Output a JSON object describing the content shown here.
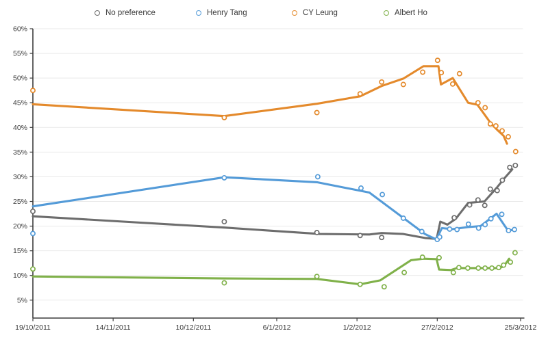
{
  "chart_data": {
    "type": "line",
    "title": "",
    "description": "Opinion polling lines with scatter points for 2012 Hong Kong Chief Executive candidates",
    "legend_position": "top",
    "grid": "horizontal",
    "x_axis": {
      "type": "date",
      "tick_labels": [
        "19/10/2011",
        "14/11/2011",
        "10/12/2011",
        "6/1/2012",
        "1/2/2012",
        "27/2/2012",
        "25/3/2012"
      ],
      "tick_positions_days": [
        0,
        26,
        52,
        79,
        105,
        131,
        158
      ],
      "range_days": [
        0,
        158
      ]
    },
    "y_axis": {
      "unit": "%",
      "min": 5,
      "max": 60,
      "step": 5,
      "tick_labels": [
        "60%",
        "55%",
        "50%",
        "45%",
        "40%",
        "35%",
        "30%",
        "25%",
        "20%",
        "15%",
        "10%",
        "5%"
      ]
    },
    "series": [
      {
        "name": "No preference",
        "color": "#6d6d6d",
        "trend_line": [
          [
            0,
            22.0
          ],
          [
            62,
            19.7
          ],
          [
            93,
            18.4
          ],
          [
            109,
            18.3
          ],
          [
            113,
            18.6
          ],
          [
            120,
            18.4
          ],
          [
            127,
            17.6
          ],
          [
            130.8,
            17.4
          ],
          [
            132,
            20.9
          ],
          [
            134.3,
            20.3
          ],
          [
            137,
            21.5
          ],
          [
            141,
            24.7
          ],
          [
            146.3,
            25.0
          ],
          [
            150.3,
            27.8
          ],
          [
            152.9,
            29.8
          ],
          [
            155.3,
            31.5
          ]
        ],
        "points": [
          [
            0,
            23.0
          ],
          [
            62,
            20.9
          ],
          [
            92,
            18.7
          ],
          [
            106,
            18.1
          ],
          [
            113,
            17.7
          ],
          [
            136.5,
            21.7
          ],
          [
            141.5,
            24.3
          ],
          [
            144.2,
            25.3
          ],
          [
            146.4,
            24.2
          ],
          [
            148.2,
            27.5
          ],
          [
            150.4,
            27.2
          ],
          [
            152.1,
            29.3
          ],
          [
            154.5,
            31.9
          ],
          [
            156.3,
            32.3
          ]
        ]
      },
      {
        "name": "Henry Tang",
        "color": "#549bd8",
        "trend_line": [
          [
            0,
            24.0
          ],
          [
            62,
            29.9
          ],
          [
            92,
            28.9
          ],
          [
            109,
            26.8
          ],
          [
            127,
            18.4
          ],
          [
            130.7,
            17.3
          ],
          [
            132.5,
            19.6
          ],
          [
            136,
            19.4
          ],
          [
            141,
            19.8
          ],
          [
            145,
            20.0
          ],
          [
            150.2,
            22.5
          ],
          [
            153.8,
            19.2
          ],
          [
            155.8,
            19.2
          ]
        ],
        "points": [
          [
            0,
            18.5
          ],
          [
            62,
            29.8
          ],
          [
            92.3,
            30.0
          ],
          [
            106.3,
            27.7
          ],
          [
            113.2,
            26.4
          ],
          [
            120,
            21.6
          ],
          [
            126,
            18.9
          ],
          [
            131,
            17.3
          ],
          [
            131.8,
            17.8
          ],
          [
            135,
            19.4
          ],
          [
            137.4,
            19.3
          ],
          [
            141.1,
            20.4
          ],
          [
            144.4,
            19.6
          ],
          [
            146.5,
            20.3
          ],
          [
            148.4,
            21.5
          ],
          [
            151.9,
            22.4
          ],
          [
            154.1,
            19.1
          ],
          [
            156,
            19.3
          ]
        ]
      },
      {
        "name": "CY Leung",
        "color": "#e48a2c",
        "trend_line": [
          [
            0,
            44.7
          ],
          [
            62,
            42.3
          ],
          [
            92,
            44.8
          ],
          [
            106,
            46.3
          ],
          [
            113,
            48.4
          ],
          [
            120,
            49.9
          ],
          [
            126.5,
            52.4
          ],
          [
            131.4,
            52.4
          ],
          [
            132.2,
            48.7
          ],
          [
            136,
            50.0
          ],
          [
            141,
            45.0
          ],
          [
            144,
            44.6
          ],
          [
            146,
            42.9
          ],
          [
            148.4,
            40.8
          ],
          [
            150.6,
            39.4
          ],
          [
            152.5,
            38.3
          ],
          [
            153.6,
            36.7
          ]
        ],
        "points": [
          [
            0,
            47.5
          ],
          [
            62,
            42.0
          ],
          [
            92,
            43.0
          ],
          [
            106,
            46.8
          ],
          [
            113,
            49.2
          ],
          [
            120,
            48.7
          ],
          [
            126.3,
            51.2
          ],
          [
            131.1,
            53.6
          ],
          [
            132.3,
            51.1
          ],
          [
            136,
            48.8
          ],
          [
            138.2,
            50.9
          ],
          [
            144.2,
            45.0
          ],
          [
            146.5,
            44.0
          ],
          [
            148.2,
            40.7
          ],
          [
            150,
            40.3
          ],
          [
            152,
            39.3
          ],
          [
            154,
            38.1
          ],
          [
            156.4,
            35.1
          ]
        ]
      },
      {
        "name": "Albert Ho",
        "color": "#80b14a",
        "trend_line": [
          [
            0,
            9.8
          ],
          [
            62,
            9.4
          ],
          [
            92,
            9.3
          ],
          [
            106,
            8.2
          ],
          [
            112.5,
            9.0
          ],
          [
            122.5,
            13.1
          ],
          [
            126.5,
            13.4
          ],
          [
            130.8,
            13.3
          ],
          [
            131.6,
            11.2
          ],
          [
            135.4,
            11.1
          ],
          [
            137.4,
            11.5
          ],
          [
            150.9,
            11.5
          ],
          [
            152.5,
            11.8
          ],
          [
            154.3,
            13.4
          ]
        ],
        "points": [
          [
            0,
            11.3
          ],
          [
            62,
            8.5
          ],
          [
            92,
            9.8
          ],
          [
            106,
            8.2
          ],
          [
            113.8,
            7.7
          ],
          [
            120.3,
            10.6
          ],
          [
            126.2,
            13.7
          ],
          [
            131.6,
            13.6
          ],
          [
            136.2,
            10.6
          ],
          [
            138,
            11.6
          ],
          [
            140.9,
            11.5
          ],
          [
            144.3,
            11.5
          ],
          [
            146.5,
            11.5
          ],
          [
            148.7,
            11.5
          ],
          [
            150.9,
            11.6
          ],
          [
            152.5,
            12.1
          ],
          [
            154.7,
            12.7
          ],
          [
            156.2,
            14.6
          ]
        ]
      }
    ],
    "style": {
      "gridline_color": "#e9e9e9",
      "axis_color": "#3c3c3c",
      "label_color": "#3a3a3a",
      "background": "#ffffff"
    }
  }
}
